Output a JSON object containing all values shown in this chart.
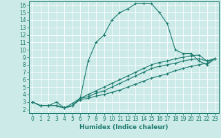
{
  "xlabel": "Humidex (Indice chaleur)",
  "bg_color": "#cceae7",
  "grid_color": "#ffffff",
  "line_color": "#1a7a6e",
  "xlim": [
    -0.5,
    23.5
  ],
  "ylim": [
    1.5,
    16.5
  ],
  "xticks": [
    0,
    1,
    2,
    3,
    4,
    5,
    6,
    7,
    8,
    9,
    10,
    11,
    12,
    13,
    14,
    15,
    16,
    17,
    18,
    19,
    20,
    21,
    22,
    23
  ],
  "yticks": [
    2,
    3,
    4,
    5,
    6,
    7,
    8,
    9,
    10,
    11,
    12,
    13,
    14,
    15,
    16
  ],
  "curve1_x": [
    0,
    1,
    2,
    3,
    4,
    5,
    6,
    7,
    8,
    9,
    10,
    11,
    12,
    13,
    14,
    15,
    16,
    17,
    18,
    19,
    20,
    21,
    22,
    23
  ],
  "curve1_y": [
    3.0,
    2.5,
    2.5,
    3.0,
    2.2,
    2.5,
    3.5,
    8.5,
    11.0,
    12.0,
    14.0,
    15.0,
    15.5,
    16.2,
    16.2,
    16.2,
    15.0,
    13.5,
    10.0,
    9.5,
    9.5,
    8.5,
    8.0,
    8.8
  ],
  "curve2_x": [
    0,
    1,
    2,
    3,
    4,
    5,
    6,
    7,
    8,
    9,
    10,
    11,
    12,
    13,
    14,
    15,
    16,
    17,
    18,
    19,
    20,
    21,
    22,
    23
  ],
  "curve2_y": [
    3.0,
    2.5,
    2.5,
    2.5,
    2.2,
    2.5,
    3.5,
    3.7,
    4.2,
    4.5,
    5.0,
    5.5,
    6.0,
    6.5,
    7.0,
    7.5,
    7.8,
    8.0,
    8.2,
    8.5,
    8.7,
    8.8,
    8.5,
    8.8
  ],
  "curve3_x": [
    0,
    1,
    2,
    3,
    4,
    5,
    6,
    7,
    8,
    9,
    10,
    11,
    12,
    13,
    14,
    15,
    16,
    17,
    18,
    19,
    20,
    21,
    22,
    23
  ],
  "curve3_y": [
    3.0,
    2.5,
    2.5,
    2.5,
    2.2,
    2.8,
    3.5,
    4.0,
    4.5,
    5.0,
    5.5,
    6.0,
    6.5,
    7.0,
    7.5,
    8.0,
    8.3,
    8.5,
    8.8,
    9.0,
    9.2,
    9.3,
    8.5,
    8.8
  ],
  "curve4_x": [
    0,
    1,
    2,
    3,
    4,
    5,
    6,
    7,
    8,
    9,
    10,
    11,
    12,
    13,
    14,
    15,
    16,
    17,
    18,
    19,
    20,
    21,
    22,
    23
  ],
  "curve4_y": [
    3.0,
    2.5,
    2.5,
    2.5,
    2.2,
    2.5,
    3.3,
    3.5,
    3.8,
    4.0,
    4.3,
    4.6,
    5.0,
    5.4,
    5.8,
    6.2,
    6.5,
    6.8,
    7.2,
    7.5,
    7.8,
    8.0,
    8.2,
    8.8
  ],
  "xlabel_fontsize": 6.5,
  "tick_fontsize": 5.5
}
